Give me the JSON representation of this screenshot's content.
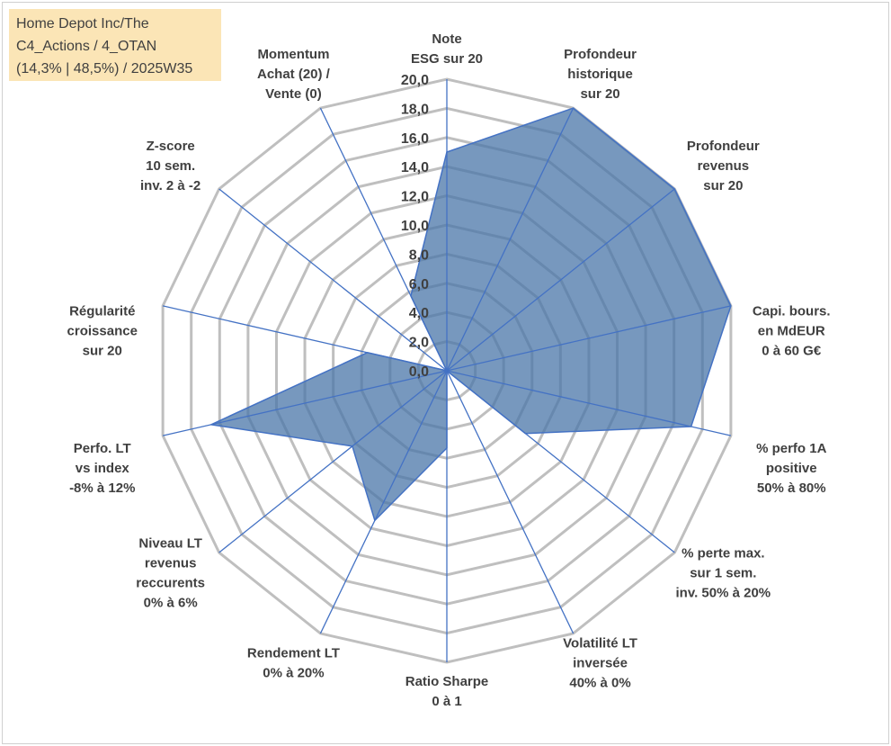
{
  "info": {
    "line1": "Home Depot Inc/The",
    "line2": "C4_Actions / 4_OTAN",
    "line3": "(14,3% | 48,5%) / 2025W35"
  },
  "colors": {
    "fill": "#4a76a8",
    "spoke": "#4472c4",
    "grid": "#bfbfbf",
    "text": "#404040",
    "info_bg": "#fbe5b6"
  },
  "chart_data": {
    "type": "radar",
    "rmin": 0,
    "rmax": 20,
    "step": 2,
    "tick_labels": [
      "0,0",
      "2,0",
      "4,0",
      "6,0",
      "8,0",
      "10,0",
      "12,0",
      "14,0",
      "16,0",
      "18,0",
      "20,0"
    ],
    "grid": true,
    "axes": [
      {
        "label": [
          "Note",
          "ESG sur 20"
        ],
        "value": 15.0
      },
      {
        "label": [
          "Profondeur",
          "historique",
          "sur 20"
        ],
        "value": 20.0
      },
      {
        "label": [
          "Profondeur",
          "revenus",
          "sur 20"
        ],
        "value": 20.0
      },
      {
        "label": [
          "Capi. bours.",
          "en MdEUR",
          "0 à 60 G€"
        ],
        "value": 20.0
      },
      {
        "label": [
          "% perfo 1A",
          "positive",
          "50% à 80%"
        ],
        "value": 17.2
      },
      {
        "label": [
          "% perte max.",
          "sur 1 sem.",
          "inv. 50% à 20%"
        ],
        "value": 6.9
      },
      {
        "label": [
          "Volatilité LT",
          "inversée",
          "40% à 0%"
        ],
        "value": 0.0
      },
      {
        "label": [
          "Ratio Sharpe",
          "0 à 1"
        ],
        "value": 5.3
      },
      {
        "label": [
          "Rendement LT",
          "0% à 20%"
        ],
        "value": 11.4
      },
      {
        "label": [
          "Niveau LT",
          "revenus",
          "reccurents",
          "0% à 6%"
        ],
        "value": 8.3
      },
      {
        "label": [
          "Perfo. LT",
          "vs index",
          "-8% à 12%"
        ],
        "value": 16.6
      },
      {
        "label": [
          "Régularité",
          "croissance",
          "sur 20"
        ],
        "value": 5.6
      },
      {
        "label": [
          "Z-score",
          "10 sem.",
          "inv. 2 à -2"
        ],
        "value": 0.0
      },
      {
        "label": [
          "Momentum",
          "Achat (20) /",
          "Vente (0)"
        ],
        "value": 5.7
      }
    ]
  }
}
